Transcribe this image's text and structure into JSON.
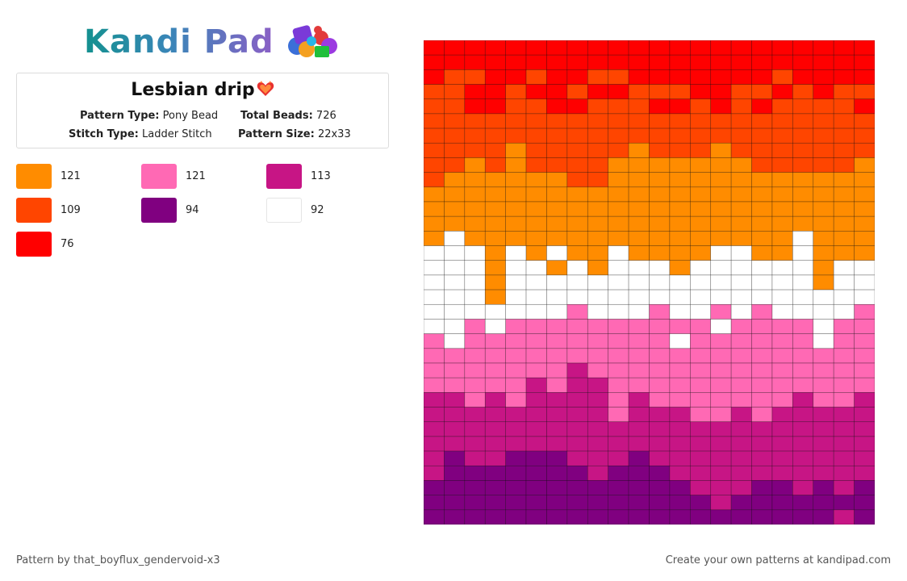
{
  "logo": {
    "text": "Kandi Pad"
  },
  "pattern": {
    "title": "Lesbian drip",
    "pattern_type_label": "Pattern Type:",
    "pattern_type": "Pony Bead",
    "total_beads_label": "Total Beads:",
    "total_beads": "726",
    "stitch_type_label": "Stitch Type:",
    "stitch_type": "Ladder Stitch",
    "pattern_size_label": "Pattern Size:",
    "pattern_size": "22x33"
  },
  "legend": [
    {
      "color": "#ff8c00",
      "count": "121"
    },
    {
      "color": "#ff69b4",
      "count": "121"
    },
    {
      "color": "#c71585",
      "count": "113"
    },
    {
      "color": "#ff4500",
      "count": "109"
    },
    {
      "color": "#800080",
      "count": "94"
    },
    {
      "color": "#ffffff",
      "count": "92"
    },
    {
      "color": "#ff0000",
      "count": "76"
    }
  ],
  "grid": {
    "cols": 22,
    "rows": 33,
    "palette": {
      "R": "#ff0000",
      "O": "#ff4500",
      "A": "#ff8c00",
      "W": "#ffffff",
      "P": "#ff69b4",
      "M": "#c71585",
      "V": "#800080"
    },
    "rows_data": [
      "RRRRRRRRRRRRRRRRRRRRRR",
      "RRRRRRRRRRRRRRRRRRRRRR",
      "ROORRORROORRRRRRRORRRR",
      "OORRORRORROOORROOROROO",
      "OORROORROOORROROROOOOR",
      "OOOOOOOOOOOOOOOOOOOOOO",
      "OOOOOOOOOOOOOOOOOOOOOO",
      "OOOOAOOOOOAOOOAOOOOOOO",
      "OOAOAOOOOAAAAAAAOOOOOA",
      "OAAAAAAOOAAAAAAAAAAAAA",
      "AAAAAAAAAAAAAAAAAAAAAA",
      "AAAAAAAAAAAAAAAAAAAAAA",
      "AAAAAAAAAAAAAAAAAAAAAA",
      "AWAAAAAAAAAAAAAAAAWAAA",
      "WWWAWAWAAWAAAAWWAAWAAA",
      "WWWAWWAWAWWWAWWWWWWAWW",
      "WWWAWWWWWWWWWWWWWWWAWW",
      "WWWAWWWWWWWWWWWWWWWWWW",
      "WWWWWWWPWWWPWWPWPWWWWP",
      "WWPWPPPPPPPPPPWPPPPWPP",
      "PWPPPPPPPPPPWPPPPPPWPP",
      "PPPPPPPPPPPPPPPPPPPPPP",
      "PPPPPPPMPPPPPPPPPPPPPP",
      "PPPPPMPMMPPPPPPPPPPPPP",
      "MMPMPMMMMPMPPPPPPPMPPM",
      "MMMMMMMMMPMMMPPMPMMMMM",
      "MMMMMMMMMMMMMMMMMMMMMM",
      "MMMMMMMMMMMMMMMMMMMMMM",
      "MVMMVVVMMMVMMMMMMMMMMM",
      "MVVVVVVVMVVVMMMMMMMMMM",
      "VVVVVVVVVVVVVMMMVVMVMV",
      "VVVVVVVVVVVVVVMVVVVVVV",
      "VVVVVVVVVVVVVVVVVVVVMV"
    ]
  },
  "footer": {
    "credit": "Pattern by that_boyflux_gendervoid-x3",
    "cta": "Create your own patterns at kandipad.com"
  }
}
